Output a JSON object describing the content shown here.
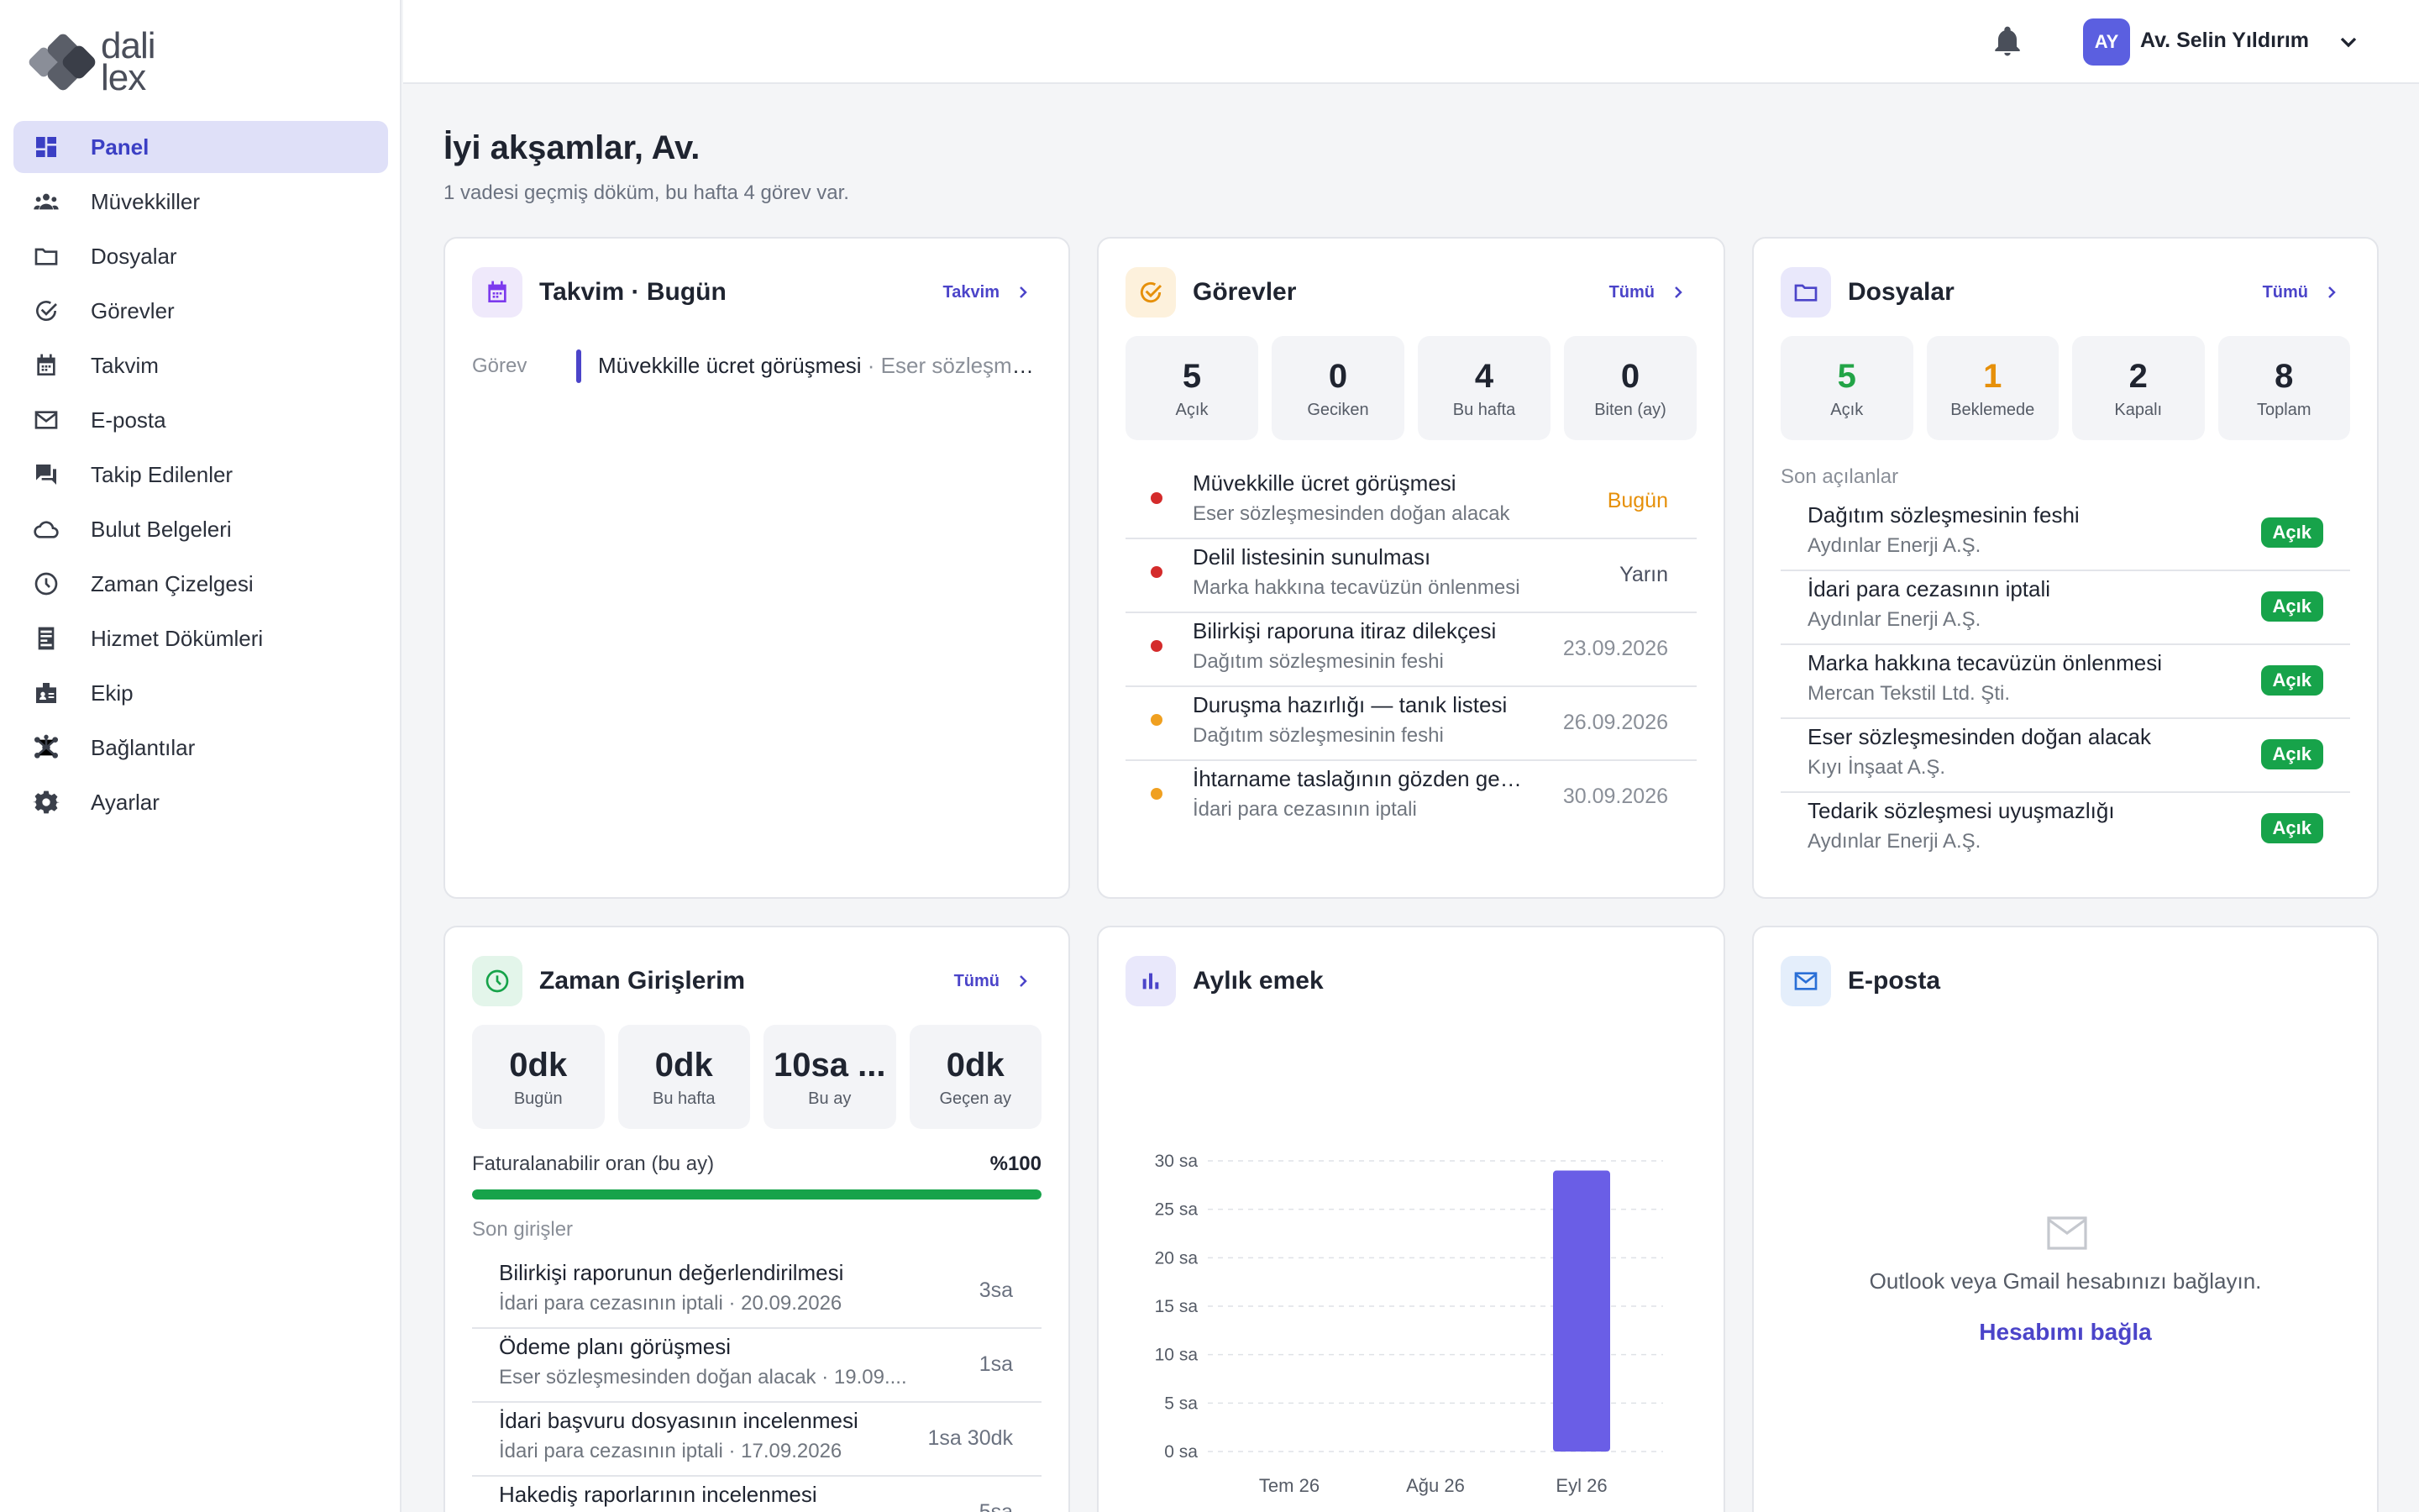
{
  "brand": {
    "line1": "dali",
    "line2": "lex"
  },
  "sidebar": {
    "items": [
      {
        "label": "Panel",
        "icon": "dashboard-icon"
      },
      {
        "label": "Müvekkiller",
        "icon": "users-icon"
      },
      {
        "label": "Dosyalar",
        "icon": "folder-icon"
      },
      {
        "label": "Görevler",
        "icon": "check-circle-icon"
      },
      {
        "label": "Takvim",
        "icon": "calendar-icon"
      },
      {
        "label": "E-posta",
        "icon": "mail-icon"
      },
      {
        "label": "Takip Edilenler",
        "icon": "chat-icon"
      },
      {
        "label": "Bulut Belgeleri",
        "icon": "cloud-icon"
      },
      {
        "label": "Zaman Çizelgesi",
        "icon": "clock-icon"
      },
      {
        "label": "Hizmet Dökümleri",
        "icon": "receipt-icon"
      },
      {
        "label": "Ekip",
        "icon": "badge-icon"
      },
      {
        "label": "Bağlantılar",
        "icon": "hub-icon"
      },
      {
        "label": "Ayarlar",
        "icon": "gear-icon"
      }
    ]
  },
  "header": {
    "avatar_initials": "AY",
    "user_name": "Av. Selin Yıldırım"
  },
  "greeting": {
    "title": "İyi akşamlar, Av.",
    "subtitle": "1 vadesi geçmiş döküm, bu hafta 4 görev var."
  },
  "calendar_card": {
    "title": "Takvim · Bugün",
    "link": "Takvim",
    "event": {
      "type": "Görev",
      "title": "Müvekkille ücret görüşmesi",
      "sep": " · ",
      "detail": "Eser sözleşmesinden doğan alacak"
    }
  },
  "tasks_card": {
    "title": "Görevler",
    "link": "Tümü",
    "stats": [
      {
        "value": "5",
        "label": "Açık"
      },
      {
        "value": "0",
        "label": "Geciken"
      },
      {
        "value": "4",
        "label": "Bu hafta"
      },
      {
        "value": "0",
        "label": "Biten (ay)"
      }
    ],
    "items": [
      {
        "title": "Müvekkille ücret görüşmesi",
        "matter": "Eser sözleşmesinden doğan alacak",
        "due": "Bugün",
        "dot": "#d42b2b",
        "due_color": "#e6900a"
      },
      {
        "title": "Delil listesinin sunulması",
        "matter": "Marka hakkına tecavüzün önlenmesi",
        "due": "Yarın",
        "dot": "#d42b2b",
        "due_color": "#4b5060"
      },
      {
        "title": "Bilirkişi raporuna itiraz dilekçesi",
        "matter": "Dağıtım sözleşmesinin feshi",
        "due": "23.09.2026",
        "dot": "#d42b2b",
        "due_color": "#8a8f98"
      },
      {
        "title": "Duruşma hazırlığı — tanık listesi",
        "matter": "Dağıtım sözleşmesinin feshi",
        "due": "26.09.2026",
        "dot": "#f0a020",
        "due_color": "#8a8f98"
      },
      {
        "title": "İhtarname taslağının gözden geçirilmesi",
        "matter": "İdari para cezasının iptali",
        "due": "30.09.2026",
        "dot": "#f0a020",
        "due_color": "#8a8f98"
      }
    ]
  },
  "files_card": {
    "title": "Dosyalar",
    "link": "Tümü",
    "stats": [
      {
        "value": "5",
        "label": "Açık",
        "color": "#22a447"
      },
      {
        "value": "1",
        "label": "Beklemede",
        "color": "#e6900a"
      },
      {
        "value": "2",
        "label": "Kapalı",
        "color": "#1f2430"
      },
      {
        "value": "8",
        "label": "Toplam",
        "color": "#1f2430"
      }
    ],
    "section": "Son açılanlar",
    "items": [
      {
        "title": "Dağıtım sözleşmesinin feshi",
        "client": "Aydınlar Enerji A.Ş.",
        "status": "Açık"
      },
      {
        "title": "İdari para cezasının iptali",
        "client": "Aydınlar Enerji A.Ş.",
        "status": "Açık"
      },
      {
        "title": "Marka hakkına tecavüzün önlenmesi",
        "client": "Mercan Tekstil Ltd. Şti.",
        "status": "Açık"
      },
      {
        "title": "Eser sözleşmesinden doğan alacak",
        "client": "Kıyı İnşaat A.Ş.",
        "status": "Açık"
      },
      {
        "title": "Tedarik sözleşmesi uyuşmazlığı",
        "client": "Aydınlar Enerji A.Ş.",
        "status": "Açık"
      }
    ]
  },
  "time_card": {
    "title": "Zaman Girişlerim",
    "link": "Tümü",
    "stats": [
      {
        "value": "0dk",
        "label": "Bugün"
      },
      {
        "value": "0dk",
        "label": "Bu hafta"
      },
      {
        "value": "10sa ...",
        "label": "Bu ay"
      },
      {
        "value": "0dk",
        "label": "Geçen ay"
      }
    ],
    "billable_label": "Faturalanabilir oran (bu ay)",
    "billable_value": "%100",
    "billable_fraction": 1.0,
    "section": "Son girişler",
    "entries": [
      {
        "title": "Bilirkişi raporunun değerlendirilmesi",
        "detail": "İdari para cezasının iptali · 20.09.2026",
        "duration": "3sa"
      },
      {
        "title": "Ödeme planı görüşmesi",
        "detail": "Eser sözleşmesinden doğan alacak · 19.09....",
        "duration": "1sa"
      },
      {
        "title": "İdari başvuru dosyasının incelenmesi",
        "detail": "İdari para cezasının iptali · 17.09.2026",
        "duration": "1sa 30dk"
      },
      {
        "title": "Hakediş raporlarının incelenmesi",
        "detail": "",
        "duration": "5sa"
      }
    ]
  },
  "effort_card": {
    "title": "Aylık emek"
  },
  "chart_data": {
    "type": "bar",
    "categories": [
      "Tem 26",
      "Ağu 26",
      "Eyl 26"
    ],
    "values": [
      0,
      0,
      29
    ],
    "y_ticks": [
      "0 sa",
      "5 sa",
      "10 sa",
      "15 sa",
      "20 sa",
      "25 sa",
      "30 sa"
    ],
    "ylim": [
      0,
      30
    ],
    "bar_color": "#6a5ee6",
    "grid": true
  },
  "email_card": {
    "title": "E-posta",
    "message": "Outlook veya Gmail hesabınızı bağlayın.",
    "action": "Hesabımı bağla"
  },
  "colors": {
    "accent": "#4b44c9",
    "success": "#17a34a",
    "warning": "#e6900a",
    "danger": "#d42b2b"
  }
}
